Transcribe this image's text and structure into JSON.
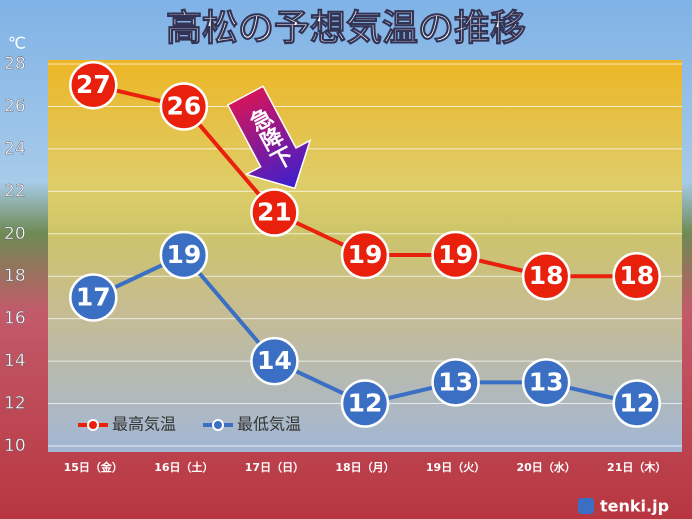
{
  "chart_data": {
    "type": "line",
    "title": "高松の予想気温の推移",
    "y_label": "℃",
    "categories": [
      "15日（金）",
      "16日（土）",
      "17日（日）",
      "18日（月）",
      "19日（火）",
      "20日（水）",
      "21日（木）"
    ],
    "series": [
      {
        "name": "最高気温",
        "color": "#e8200c",
        "values": [
          27,
          26,
          21,
          19,
          19,
          18,
          18
        ]
      },
      {
        "name": "最低気温",
        "color": "#3a6fc4",
        "values": [
          17,
          19,
          14,
          12,
          13,
          13,
          12
        ]
      }
    ],
    "ylim": [
      10,
      28
    ],
    "yticks": [
      10,
      12,
      14,
      16,
      18,
      20,
      22,
      24,
      26,
      28
    ],
    "grid": true,
    "legend": "lower left",
    "annotation": "急降下",
    "source": "tenki.jp"
  }
}
